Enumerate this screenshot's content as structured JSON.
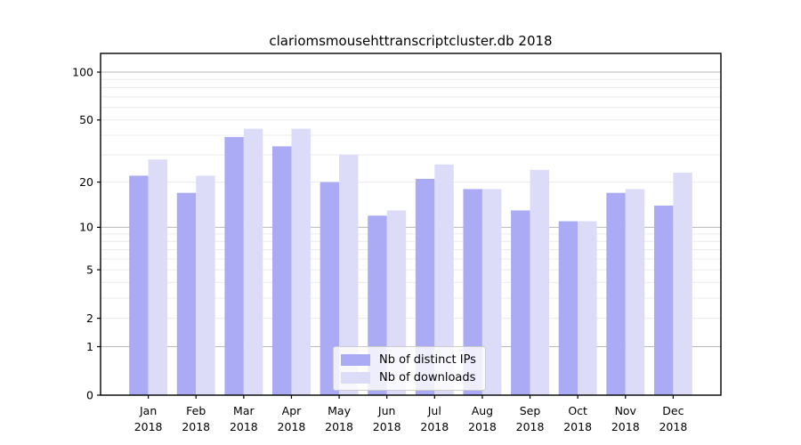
{
  "title": "clariomsmousehttranscriptcluster.db 2018",
  "chart_data": {
    "type": "bar",
    "title": "clariomsmousehttranscriptcluster.db 2018",
    "x_axis": {
      "categories": [
        "Jan",
        "Feb",
        "Mar",
        "Apr",
        "May",
        "Jun",
        "Jul",
        "Aug",
        "Sep",
        "Oct",
        "Nov",
        "Dec"
      ],
      "year_label": "2018"
    },
    "y_axis": {
      "scale": "log10(1+x)",
      "ticks": [
        0,
        1,
        2,
        5,
        10,
        20,
        50,
        100
      ],
      "range": [
        0,
        131
      ],
      "major_gridlines": [
        1,
        10,
        100
      ],
      "minor_gridlines": [
        2,
        3,
        4,
        5,
        6,
        7,
        8,
        9,
        20,
        30,
        40,
        50,
        60,
        70,
        80,
        90
      ]
    },
    "series": [
      {
        "name": "Nb of distinct IPs",
        "color": "#aaaaf5",
        "values": [
          22,
          17,
          39,
          34,
          20,
          12,
          21,
          18,
          13,
          11,
          17,
          14
        ]
      },
      {
        "name": "Nb of downloads",
        "color": "#dcdcf9",
        "values": [
          28,
          22,
          44,
          44,
          30,
          13,
          26,
          18,
          24,
          11,
          18,
          23
        ]
      }
    ],
    "legend": {
      "position": "lower center"
    },
    "grid": true
  },
  "colors": {
    "axis": "#000000",
    "major_grid": "#b8b8b8",
    "minor_grid": "#ececec",
    "background": "#ffffff",
    "tick_label": "#000000"
  }
}
